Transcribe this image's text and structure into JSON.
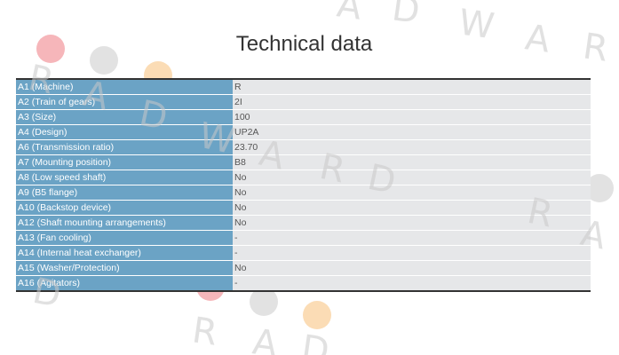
{
  "header": {
    "title": "Technical data"
  },
  "table": {
    "rows": [
      [
        "A1 (Machine)",
        "R"
      ],
      [
        "A2 (Train of gears)",
        "2I"
      ],
      [
        "A3 (Size)",
        "100"
      ],
      [
        "A4 (Design)",
        "UP2A"
      ],
      [
        "A6 (Transmission ratio)",
        "23.70"
      ],
      [
        "A7 (Mounting position)",
        "B8"
      ],
      [
        "A8 (Low speed shaft)",
        "No"
      ],
      [
        "A9 (B5 flange)",
        "No"
      ],
      [
        "A10 (Backstop device)",
        "No"
      ],
      [
        "A12 (Shaft mounting arrangements)",
        "No"
      ],
      [
        "A13 (Fan cooling)",
        "-"
      ],
      [
        "A14 (Internal heat exchanger)",
        "-"
      ],
      [
        "A15 (Washer/Protection)",
        "No"
      ],
      [
        "A16 (Agitators)",
        "-"
      ]
    ]
  },
  "watermark": [
    "A",
    "D",
    "W",
    "A",
    "R",
    "R",
    "A",
    "D",
    "W",
    "A",
    "R",
    "D",
    "R",
    "A",
    "D",
    "R",
    "A",
    "D"
  ]
}
